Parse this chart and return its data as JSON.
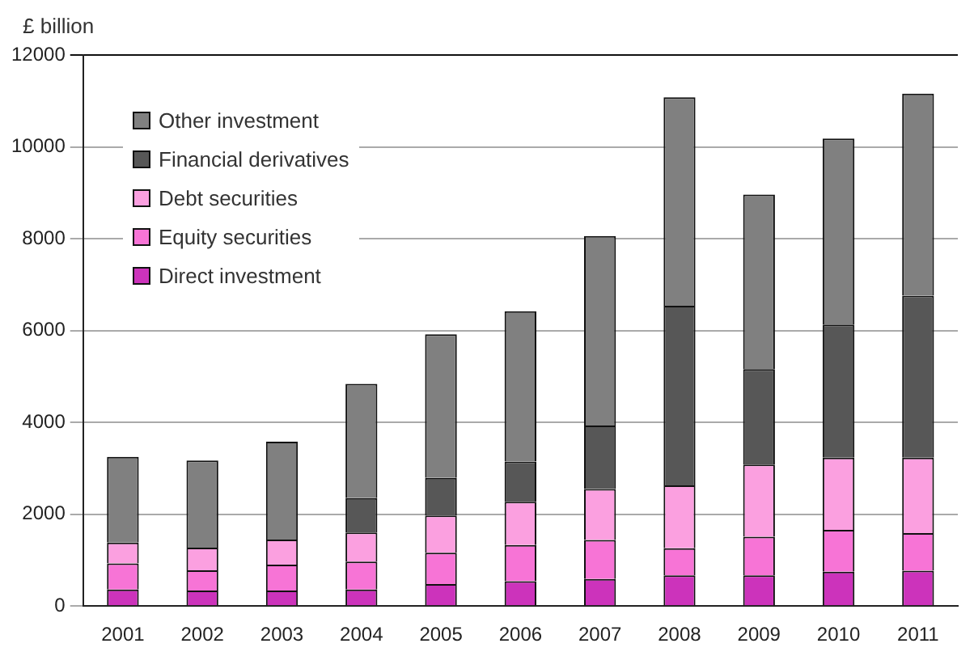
{
  "chart_data": {
    "type": "bar",
    "stacked": true,
    "ylabel": "£ billion",
    "categories": [
      "2001",
      "2002",
      "2003",
      "2004",
      "2005",
      "2006",
      "2007",
      "2008",
      "2009",
      "2010",
      "2011"
    ],
    "series": [
      {
        "name": "Direct investment",
        "color": "#cc33bb",
        "values": [
          360,
          340,
          340,
          360,
          480,
          540,
          590,
          670,
          670,
          750,
          770
        ]
      },
      {
        "name": "Equity securities",
        "color": "#f774d6",
        "values": [
          570,
          440,
          560,
          610,
          680,
          790,
          850,
          590,
          840,
          910,
          820
        ]
      },
      {
        "name": "Debt securities",
        "color": "#fba0e0",
        "values": [
          450,
          490,
          550,
          630,
          810,
          940,
          1110,
          1370,
          1570,
          1570,
          1640
        ]
      },
      {
        "name": "Financial derivatives",
        "color": "#575757",
        "values": [
          0,
          0,
          0,
          750,
          820,
          880,
          1380,
          3910,
          2080,
          2900,
          3530
        ]
      },
      {
        "name": "Other investment",
        "color": "#808080",
        "values": [
          1870,
          1900,
          2130,
          2490,
          3130,
          3270,
          4130,
          4540,
          3800,
          4050,
          4400
        ]
      }
    ],
    "ylim": [
      0,
      12000
    ],
    "yticks": [
      0,
      2000,
      4000,
      6000,
      8000,
      10000,
      12000
    ],
    "grid": "y",
    "legend": "top left"
  }
}
